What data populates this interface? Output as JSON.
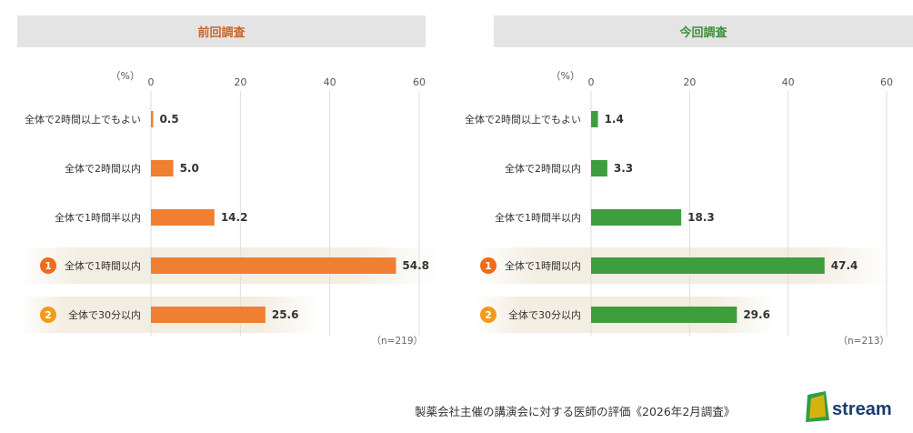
{
  "panels": [
    {
      "title": "前回調査",
      "color": "#f07f32",
      "header_color": "#c8662a"
    },
    {
      "title": "今回調査",
      "color": "#3e9e3e",
      "header_color": "#3f8f3f"
    }
  ],
  "footer": "製薬会社主催の講演会に対する医師の評価《2026年2月調査》",
  "logo_text": "Jstream",
  "chart_data": [
    {
      "type": "bar",
      "orientation": "horizontal",
      "title": "前回調査",
      "unit_label": "（%）",
      "xlim": [
        0,
        60
      ],
      "ticks": [
        0,
        20,
        40,
        60
      ],
      "categories": [
        "全体で2時間以上でもよい",
        "全体で2時間以内",
        "全体で1時間半以内",
        "全体で1時間以内",
        "全体で30分以内"
      ],
      "values": [
        0.5,
        5.0,
        14.2,
        54.8,
        25.6
      ],
      "value_labels": [
        "0.5",
        "5.0",
        "14.2",
        "54.8",
        "25.6"
      ],
      "rank_badges": [
        "",
        "",
        "",
        "1",
        "2"
      ],
      "n_label": "（n=219）"
    },
    {
      "type": "bar",
      "orientation": "horizontal",
      "title": "今回調査",
      "unit_label": "（%）",
      "xlim": [
        0,
        60
      ],
      "ticks": [
        0,
        20,
        40,
        60
      ],
      "categories": [
        "全体で2時間以上でもよい",
        "全体で2時間以内",
        "全体で1時間半以内",
        "全体で1時間以内",
        "全体で30分以内"
      ],
      "values": [
        1.4,
        3.3,
        18.3,
        47.4,
        29.6
      ],
      "value_labels": [
        "1.4",
        "3.3",
        "18.3",
        "47.4",
        "29.6"
      ],
      "rank_badges": [
        "",
        "",
        "",
        "1",
        "2"
      ],
      "n_label": "（n=213）"
    }
  ]
}
